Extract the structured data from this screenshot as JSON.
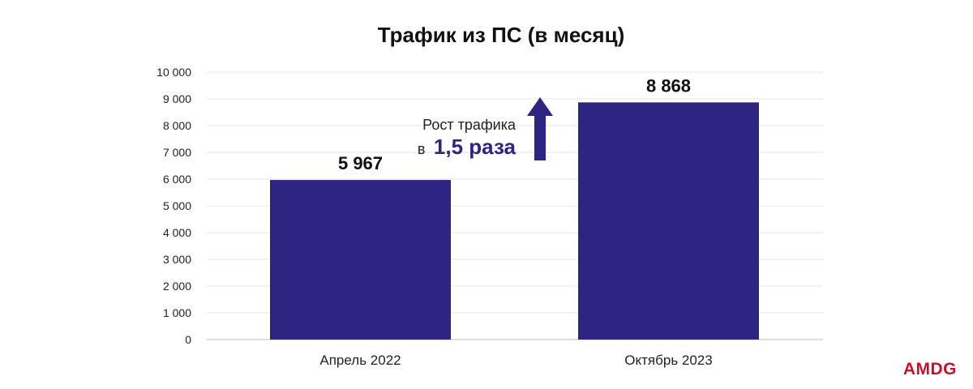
{
  "chart_data": {
    "type": "bar",
    "title": "Трафик из ПС (в месяц)",
    "categories": [
      "Апрель 2022",
      "Октябрь 2023"
    ],
    "values": [
      5967,
      8868
    ],
    "value_labels": [
      "5 967",
      "8 868"
    ],
    "ylim": [
      0,
      10000
    ],
    "yticks": [
      0,
      1000,
      2000,
      3000,
      4000,
      5000,
      6000,
      7000,
      8000,
      9000,
      10000
    ],
    "ytick_labels": [
      "0",
      "1 000",
      "2 000",
      "3 000",
      "4 000",
      "5 000",
      "6 000",
      "7 000",
      "8 000",
      "9 000",
      "10 000"
    ],
    "grid": true,
    "bar_color": "#2e2482",
    "annotation": {
      "line1": "Рост трафика",
      "prefix": "в",
      "emphasis": "1,5 раза",
      "color": "#2e2482"
    }
  },
  "logo": {
    "text": "AMDG",
    "color": "#c8102e"
  }
}
